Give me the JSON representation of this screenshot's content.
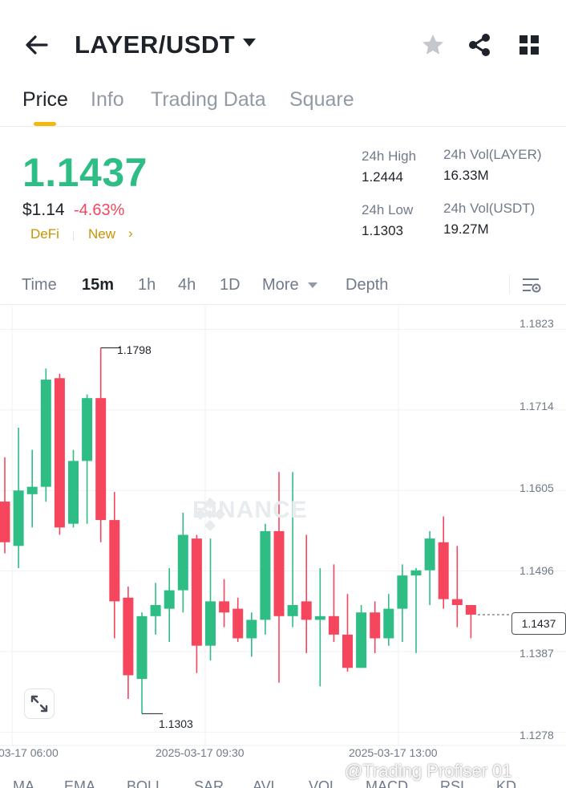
{
  "header": {
    "pair": "LAYER/USDT"
  },
  "tabs": [
    "Price",
    "Info",
    "Trading Data",
    "Square"
  ],
  "ticker": {
    "last_price": "1.1437",
    "fiat_price": "$1.14",
    "change_pct": "-4.63%",
    "tags": [
      "DeFi",
      "New"
    ],
    "high_label": "24h High",
    "high_value": "1.2444",
    "low_label": "24h Low",
    "low_value": "1.1303",
    "vol_base_label": "24h Vol(LAYER)",
    "vol_base_value": "16.33M",
    "vol_quote_label": "24h Vol(USDT)",
    "vol_quote_value": "19.27M"
  },
  "intervals": [
    "Time",
    "15m",
    "1h",
    "4h",
    "1D",
    "More",
    "Depth"
  ],
  "indicators": [
    "MA",
    "EMA",
    "BOLL",
    "SAR",
    "AVL",
    "VOL",
    "MACD",
    "RSI",
    "KD"
  ],
  "overlay_text": "@Trading Profiser 01",
  "colors": {
    "up": "#2ebd85",
    "down": "#f6465d",
    "accent": "#f0b90b"
  },
  "chart_data": {
    "type": "candlestick",
    "watermark": "BINANCE",
    "y_ticks": [
      "1.1823",
      "1.1714",
      "1.1605",
      "1.1496",
      "1.1387",
      "1.1278"
    ],
    "ylim": [
      1.126,
      1.1855
    ],
    "x_ticks": [
      "03-17 06:00",
      "2025-03-17 09:30",
      "2025-03-17 13:00"
    ],
    "last_price_tag": "1.1437",
    "high_marker": "1.1798",
    "low_marker": "1.1303",
    "candles": [
      {
        "o": 1.159,
        "h": 1.165,
        "l": 1.152,
        "c": 1.1535
      },
      {
        "o": 1.153,
        "h": 1.169,
        "l": 1.15,
        "c": 1.1605
      },
      {
        "o": 1.16,
        "h": 1.166,
        "l": 1.1555,
        "c": 1.161
      },
      {
        "o": 1.161,
        "h": 1.177,
        "l": 1.159,
        "c": 1.1755
      },
      {
        "o": 1.1757,
        "h": 1.1763,
        "l": 1.1545,
        "c": 1.1555
      },
      {
        "o": 1.156,
        "h": 1.166,
        "l": 1.1555,
        "c": 1.1645
      },
      {
        "o": 1.1645,
        "h": 1.1735,
        "l": 1.156,
        "c": 1.173
      },
      {
        "o": 1.173,
        "h": 1.1798,
        "l": 1.1535,
        "c": 1.1565
      },
      {
        "o": 1.1565,
        "h": 1.1603,
        "l": 1.1405,
        "c": 1.1455
      },
      {
        "o": 1.146,
        "h": 1.1475,
        "l": 1.1323,
        "c": 1.1355
      },
      {
        "o": 1.135,
        "h": 1.144,
        "l": 1.1303,
        "c": 1.1435
      },
      {
        "o": 1.1435,
        "h": 1.148,
        "l": 1.141,
        "c": 1.145
      },
      {
        "o": 1.1445,
        "h": 1.15,
        "l": 1.14,
        "c": 1.147
      },
      {
        "o": 1.147,
        "h": 1.1575,
        "l": 1.144,
        "c": 1.1545
      },
      {
        "o": 1.154,
        "h": 1.1545,
        "l": 1.1358,
        "c": 1.1395
      },
      {
        "o": 1.1395,
        "h": 1.154,
        "l": 1.1375,
        "c": 1.1455
      },
      {
        "o": 1.1455,
        "h": 1.1485,
        "l": 1.142,
        "c": 1.144
      },
      {
        "o": 1.1445,
        "h": 1.146,
        "l": 1.14,
        "c": 1.1405
      },
      {
        "o": 1.1405,
        "h": 1.144,
        "l": 1.138,
        "c": 1.143
      },
      {
        "o": 1.143,
        "h": 1.156,
        "l": 1.141,
        "c": 1.155
      },
      {
        "o": 1.155,
        "h": 1.163,
        "l": 1.1345,
        "c": 1.1435
      },
      {
        "o": 1.1435,
        "h": 1.163,
        "l": 1.142,
        "c": 1.145
      },
      {
        "o": 1.1455,
        "h": 1.1545,
        "l": 1.1385,
        "c": 1.143
      },
      {
        "o": 1.143,
        "h": 1.15,
        "l": 1.134,
        "c": 1.1435
      },
      {
        "o": 1.1435,
        "h": 1.1505,
        "l": 1.14,
        "c": 1.141
      },
      {
        "o": 1.141,
        "h": 1.1465,
        "l": 1.136,
        "c": 1.1365
      },
      {
        "o": 1.1365,
        "h": 1.145,
        "l": 1.1365,
        "c": 1.144
      },
      {
        "o": 1.144,
        "h": 1.1455,
        "l": 1.1385,
        "c": 1.1405
      },
      {
        "o": 1.1405,
        "h": 1.1465,
        "l": 1.1395,
        "c": 1.1445
      },
      {
        "o": 1.1445,
        "h": 1.1505,
        "l": 1.14,
        "c": 1.149
      },
      {
        "o": 1.149,
        "h": 1.15,
        "l": 1.1385,
        "c": 1.1497
      },
      {
        "o": 1.1497,
        "h": 1.155,
        "l": 1.145,
        "c": 1.154
      },
      {
        "o": 1.1535,
        "h": 1.157,
        "l": 1.1445,
        "c": 1.1458
      },
      {
        "o": 1.1458,
        "h": 1.153,
        "l": 1.142,
        "c": 1.145
      },
      {
        "o": 1.145,
        "h": 1.145,
        "l": 1.1405,
        "c": 1.1437
      }
    ]
  }
}
